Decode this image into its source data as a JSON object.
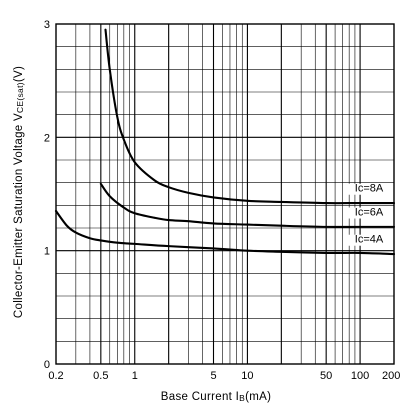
{
  "chart_data": {
    "type": "line",
    "xlabel": "Base Current I",
    "xlabel_sub": "B",
    "xlabel_unit": "(mA)",
    "ylabel": "Collector-Emitter Saturation Voltage V",
    "ylabel_sub": "CE(sat)",
    "ylabel_unit": "(V)",
    "x_scale": "log",
    "xlim": [
      0.2,
      200
    ],
    "ylim": [
      0,
      3
    ],
    "grid": true,
    "x_ticks": [
      {
        "value": 0.2,
        "label": "0.2"
      },
      {
        "value": 0.5,
        "label": "0.5"
      },
      {
        "value": 1,
        "label": "1"
      },
      {
        "value": 5,
        "label": "5"
      },
      {
        "value": 10,
        "label": "10"
      },
      {
        "value": 50,
        "label": "50"
      },
      {
        "value": 100,
        "label": "100"
      },
      {
        "value": 200,
        "label": "200"
      }
    ],
    "y_ticks": [
      {
        "value": 0,
        "label": "0"
      },
      {
        "value": 1,
        "label": "1"
      },
      {
        "value": 2,
        "label": "2"
      },
      {
        "value": 3,
        "label": "3"
      }
    ],
    "series": [
      {
        "name": "Ic=8A",
        "x": [
          0.55,
          0.6,
          0.7,
          0.8,
          1.0,
          1.5,
          2,
          3,
          5,
          10,
          20,
          50,
          100,
          200
        ],
        "y": [
          2.95,
          2.6,
          2.18,
          1.98,
          1.78,
          1.62,
          1.56,
          1.51,
          1.47,
          1.44,
          1.43,
          1.42,
          1.42,
          1.42
        ]
      },
      {
        "name": "Ic=6A",
        "x": [
          0.5,
          0.6,
          0.8,
          1.0,
          1.5,
          2,
          3,
          5,
          10,
          20,
          50,
          100,
          200
        ],
        "y": [
          1.59,
          1.48,
          1.38,
          1.33,
          1.29,
          1.27,
          1.26,
          1.24,
          1.23,
          1.22,
          1.21,
          1.21,
          1.21
        ]
      },
      {
        "name": "Ic=4A",
        "x": [
          0.2,
          0.25,
          0.3,
          0.4,
          0.5,
          0.7,
          1.0,
          2,
          5,
          10,
          20,
          50,
          100,
          200
        ],
        "y": [
          1.35,
          1.22,
          1.16,
          1.11,
          1.09,
          1.07,
          1.06,
          1.04,
          1.02,
          1.0,
          0.99,
          0.98,
          0.98,
          0.97
        ]
      }
    ],
    "series_label_positions": [
      {
        "name": "Ic=8A",
        "x": 120,
        "y": 1.52
      },
      {
        "name": "Ic=6A",
        "x": 120,
        "y": 1.31
      },
      {
        "name": "Ic=4A",
        "x": 120,
        "y": 1.07
      }
    ]
  }
}
